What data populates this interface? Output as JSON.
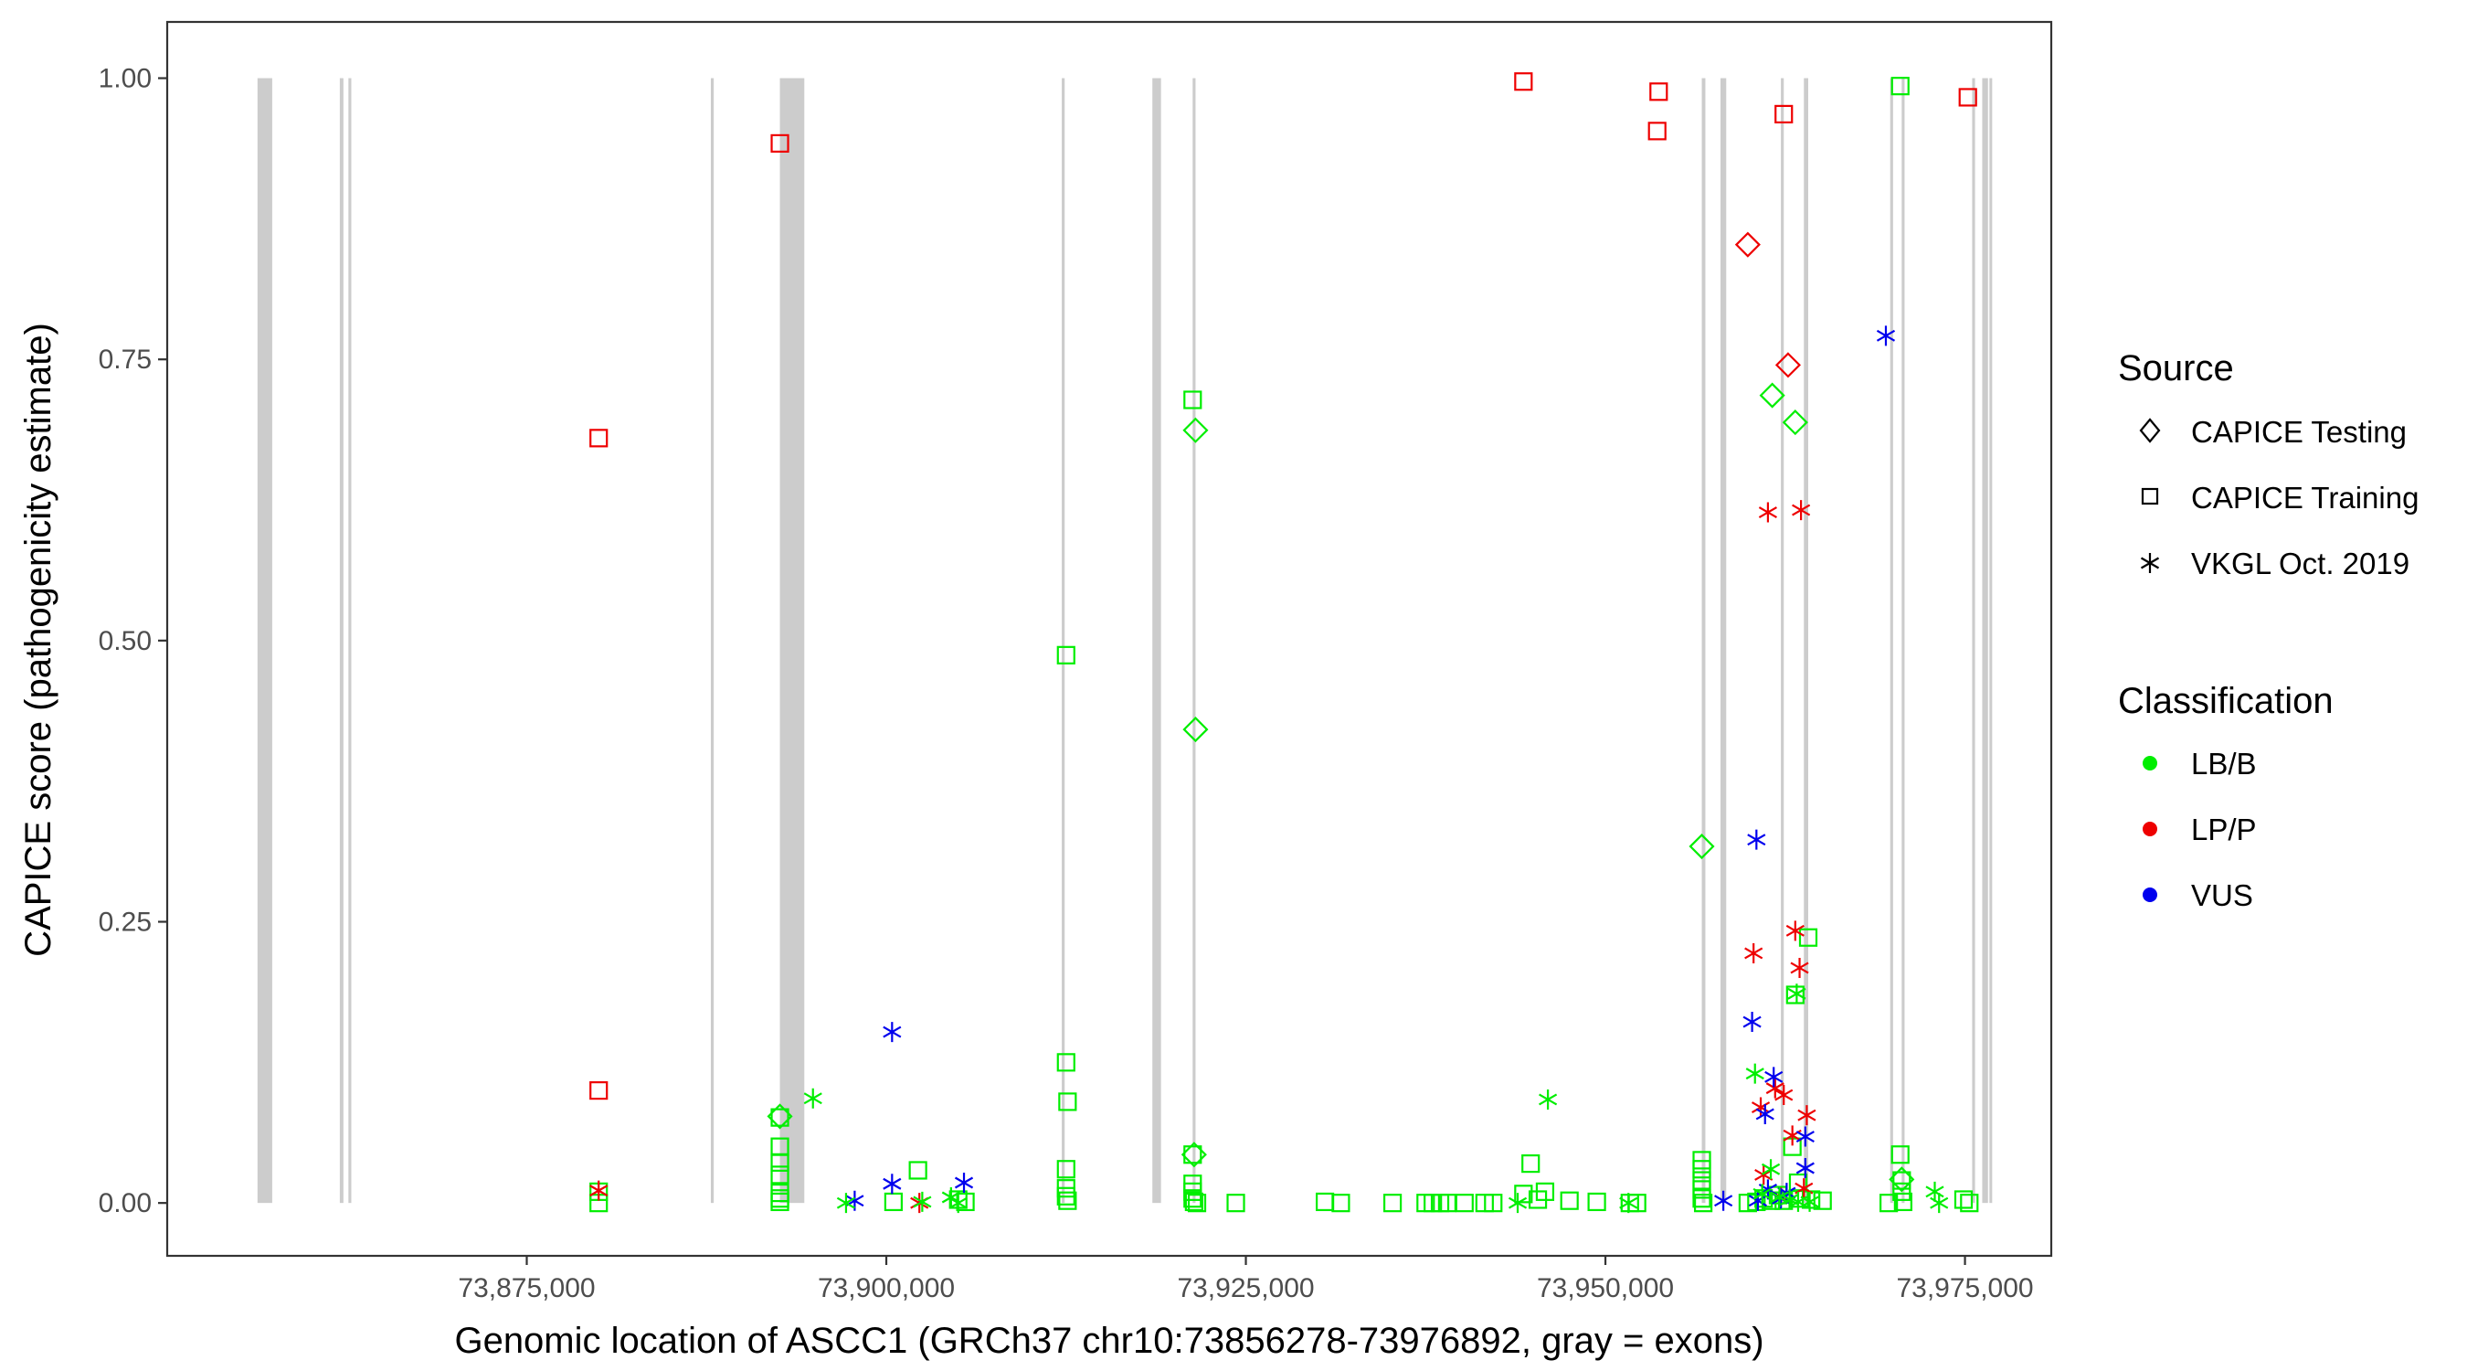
{
  "chart_data": {
    "type": "scatter",
    "xlabel": "Genomic location of ASCC1 (GRCh37 chr10:73856278-73976892, gray = exons)",
    "ylabel": "CAPICE score (pathogenicity estimate)",
    "xlim": [
      73850000,
      73981000
    ],
    "ylim": [
      -0.047,
      1.05
    ],
    "x_ticks": [
      73875000,
      73900000,
      73925000,
      73950000,
      73975000
    ],
    "x_tick_labels": [
      "73,875,000",
      "73,900,000",
      "73,925,000",
      "73,950,000",
      "73,975,000"
    ],
    "y_ticks": [
      0,
      0.25,
      0.5,
      0.75,
      1.0
    ],
    "y_tick_labels": [
      "0.00",
      "0.25",
      "0.50",
      "0.75",
      "1.00"
    ],
    "grid": false,
    "legend_position": "right",
    "exons": [
      [
        73856278,
        73857300
      ],
      [
        73862000,
        73862250
      ],
      [
        73862600,
        73862800
      ],
      [
        73887800,
        73888000
      ],
      [
        73892600,
        73894300
      ],
      [
        73912200,
        73912400
      ],
      [
        73918500,
        73919100
      ],
      [
        73921300,
        73921500
      ],
      [
        73956700,
        73956950
      ],
      [
        73958000,
        73958400
      ],
      [
        73962200,
        73962400
      ],
      [
        73963800,
        73964100
      ],
      [
        73969800,
        73970000
      ],
      [
        73970600,
        73970800
      ],
      [
        73975500,
        73975700
      ],
      [
        73976200,
        73976600
      ],
      [
        73976700,
        73976892
      ]
    ],
    "legend": {
      "source_title": "Source",
      "source_items": [
        {
          "label": "CAPICE Testing",
          "shape": "diamond"
        },
        {
          "label": "CAPICE Training",
          "shape": "square"
        },
        {
          "label": "VKGL Oct. 2019",
          "shape": "asterisk"
        }
      ],
      "class_title": "Classification",
      "class_items": [
        {
          "label": "LB/B",
          "color": "#00ee00"
        },
        {
          "label": "LP/P",
          "color": "#ee0000"
        },
        {
          "label": "VUS",
          "color": "#0000ee"
        }
      ]
    },
    "colors": {
      "LB/B": "#00ee00",
      "LP/P": "#ee0000",
      "VUS": "#0000ee"
    },
    "series": [
      {
        "source": "CAPICE Training",
        "classification": "LP/P",
        "points": [
          [
            73880000,
            0.68
          ],
          [
            73880000,
            0.1
          ],
          [
            73892600,
            0.942
          ],
          [
            73944300,
            0.997
          ],
          [
            73953700,
            0.988
          ],
          [
            73953600,
            0.953
          ],
          [
            73962400,
            0.968
          ],
          [
            73975200,
            0.983
          ]
        ]
      },
      {
        "source": "CAPICE Training",
        "classification": "LB/B",
        "points": [
          [
            73880000,
            0.0
          ],
          [
            73880000,
            0.01
          ],
          [
            73892600,
            0.001
          ],
          [
            73892600,
            0.004
          ],
          [
            73892600,
            0.009
          ],
          [
            73892600,
            0.025
          ],
          [
            73892600,
            0.036
          ],
          [
            73892600,
            0.05
          ],
          [
            73892600,
            0.076
          ],
          [
            73900500,
            0.001
          ],
          [
            73902200,
            0.029
          ],
          [
            73905000,
            0.003
          ],
          [
            73905500,
            0.001
          ],
          [
            73912500,
            0.487
          ],
          [
            73912500,
            0.125
          ],
          [
            73912600,
            0.09
          ],
          [
            73912500,
            0.03
          ],
          [
            73912500,
            0.013
          ],
          [
            73912500,
            0.006
          ],
          [
            73912600,
            0.002
          ],
          [
            73921300,
            0.714
          ],
          [
            73921300,
            0.043
          ],
          [
            73921300,
            0.017
          ],
          [
            73921300,
            0.01
          ],
          [
            73921300,
            0.004
          ],
          [
            73921400,
            0.001
          ],
          [
            73921600,
            0.0
          ],
          [
            73924300,
            0.0
          ],
          [
            73930500,
            0.001
          ],
          [
            73931600,
            0.0
          ],
          [
            73935200,
            0.0
          ],
          [
            73937500,
            0.0
          ],
          [
            73938000,
            0.0
          ],
          [
            73938500,
            0.0
          ],
          [
            73939000,
            0.0
          ],
          [
            73940200,
            0.0
          ],
          [
            73941600,
            0.0
          ],
          [
            73942200,
            0.0
          ],
          [
            73944300,
            0.008
          ],
          [
            73944800,
            0.035
          ],
          [
            73945300,
            0.003
          ],
          [
            73945800,
            0.01
          ],
          [
            73947500,
            0.002
          ],
          [
            73949400,
            0.001
          ],
          [
            73951700,
            0.0
          ],
          [
            73952200,
            0.0
          ],
          [
            73956700,
            0.038
          ],
          [
            73956700,
            0.03
          ],
          [
            73956700,
            0.02
          ],
          [
            73956700,
            0.012
          ],
          [
            73956700,
            0.004
          ],
          [
            73956800,
            0.0
          ],
          [
            73959900,
            0.0
          ],
          [
            73960500,
            0.001
          ],
          [
            73961000,
            0.004
          ],
          [
            73961500,
            0.002
          ],
          [
            73962000,
            0.007
          ],
          [
            73962400,
            0.002
          ],
          [
            73963000,
            0.05
          ],
          [
            73963200,
            0.185
          ],
          [
            73963400,
            0.018
          ],
          [
            73963500,
            0.004
          ],
          [
            73964100,
            0.236
          ],
          [
            73964300,
            0.003
          ],
          [
            73965100,
            0.002
          ],
          [
            73969700,
            0.0
          ],
          [
            73970500,
            0.993
          ],
          [
            73970500,
            0.043
          ],
          [
            73970600,
            0.02
          ],
          [
            73970600,
            0.01
          ],
          [
            73970700,
            0.001
          ],
          [
            73974900,
            0.003
          ],
          [
            73975300,
            0.0
          ]
        ]
      },
      {
        "source": "CAPICE Testing",
        "classification": "LP/P",
        "points": [
          [
            73959900,
            0.852
          ],
          [
            73962700,
            0.745
          ]
        ]
      },
      {
        "source": "CAPICE Testing",
        "classification": "LB/B",
        "points": [
          [
            73892600,
            0.077
          ],
          [
            73921500,
            0.687
          ],
          [
            73921500,
            0.421
          ],
          [
            73921400,
            0.043
          ],
          [
            73956700,
            0.317
          ],
          [
            73961600,
            0.718
          ],
          [
            73963200,
            0.694
          ],
          [
            73970600,
            0.021
          ]
        ]
      },
      {
        "source": "VKGL Oct. 2019",
        "classification": "LP/P",
        "points": [
          [
            73880000,
            0.011
          ],
          [
            73902300,
            0.0
          ],
          [
            73960300,
            0.222
          ],
          [
            73961300,
            0.614
          ],
          [
            73963600,
            0.616
          ],
          [
            73963200,
            0.242
          ],
          [
            73963500,
            0.209
          ],
          [
            73961800,
            0.102
          ],
          [
            73962400,
            0.096
          ],
          [
            73960800,
            0.085
          ],
          [
            73964000,
            0.078
          ],
          [
            73963000,
            0.06
          ],
          [
            73961000,
            0.025
          ],
          [
            73963800,
            0.013
          ],
          [
            73962200,
            0.005
          ]
        ]
      },
      {
        "source": "VKGL Oct. 2019",
        "classification": "VUS",
        "points": [
          [
            73897800,
            0.002
          ],
          [
            73900400,
            0.152
          ],
          [
            73900400,
            0.017
          ],
          [
            73905400,
            0.018
          ],
          [
            73958200,
            0.002
          ],
          [
            73960500,
            0.323
          ],
          [
            73960200,
            0.161
          ],
          [
            73961700,
            0.112
          ],
          [
            73961100,
            0.079
          ],
          [
            73963900,
            0.059
          ],
          [
            73963900,
            0.031
          ],
          [
            73961300,
            0.012
          ],
          [
            73962600,
            0.009
          ],
          [
            73960600,
            0.002
          ],
          [
            73962200,
            0.004
          ],
          [
            73969500,
            0.771
          ]
        ]
      },
      {
        "source": "VKGL Oct. 2019",
        "classification": "LB/B",
        "points": [
          [
            73894900,
            0.093
          ],
          [
            73897200,
            0.0
          ],
          [
            73902500,
            0.001
          ],
          [
            73904500,
            0.005
          ],
          [
            73905000,
            0.0
          ],
          [
            73946000,
            0.092
          ],
          [
            73943900,
            0.0
          ],
          [
            73951600,
            0.0
          ],
          [
            73960400,
            0.115
          ],
          [
            73960900,
            0.008
          ],
          [
            73961500,
            0.03
          ],
          [
            73962100,
            0.005
          ],
          [
            73962800,
            0.003
          ],
          [
            73963300,
            0.186
          ],
          [
            73963400,
            0.001
          ],
          [
            73964200,
            0.001
          ],
          [
            73972900,
            0.01
          ],
          [
            73973200,
            0.0
          ]
        ]
      }
    ]
  }
}
